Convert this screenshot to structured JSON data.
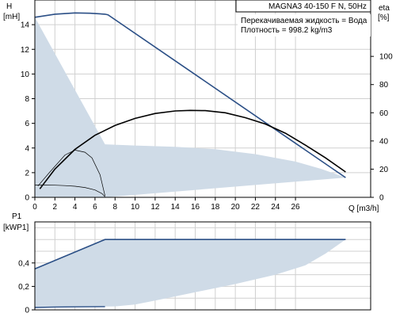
{
  "header": {
    "title": "MAGNA3 40-150 F N, 50Hz",
    "liquid": "Перекачиваемая жидкость = Вода",
    "density": "Плотность = 998.2 kg/m3"
  },
  "colors": {
    "fill": "#cfdbe7",
    "curve": "#2b4f86",
    "grid": "#d0d0d0",
    "black": "#000000"
  },
  "chart_data": [
    {
      "type": "area",
      "ylabel_1": "H",
      "ylabel_2": "[mH]",
      "y2label_1": "eta",
      "y2label_2": "[%]",
      "xlabel": "Q [m3/h]",
      "xlim": [
        0,
        33.5
      ],
      "ylim": [
        0,
        16
      ],
      "y2lim": [
        0,
        140
      ],
      "xticks": [
        "0",
        "2",
        "4",
        "6",
        "8",
        "10",
        "12",
        "14",
        "16",
        "18",
        "20",
        "22",
        "24",
        "26"
      ],
      "yticks": [
        "0",
        "2",
        "4",
        "6",
        "8",
        "10",
        "12",
        "14"
      ],
      "y2ticks": [
        "0",
        "20",
        "40",
        "60",
        "80",
        "100"
      ],
      "grid": true,
      "series": [
        {
          "role": "operating-area",
          "x": [
            0,
            4,
            7,
            31,
            28.6,
            26,
            22,
            18,
            14,
            10,
            7,
            0
          ],
          "y": [
            0,
            0,
            0,
            1.6,
            2.3,
            2.9,
            3.5,
            3.9,
            4.1,
            4.2,
            4.3,
            14.6
          ]
        },
        {
          "role": "max-head",
          "x": [
            0,
            2,
            4,
            5.5,
            7,
            7.3,
            31
          ],
          "y": [
            14.6,
            14.85,
            14.95,
            14.93,
            14.85,
            14.8,
            1.6
          ]
        },
        {
          "role": "max-efficiency",
          "x": [
            0.5,
            2,
            4,
            6,
            8,
            10,
            12,
            14,
            15.5,
            17,
            19,
            21,
            23,
            25,
            27,
            29,
            31
          ],
          "y": [
            6,
            20,
            34,
            44,
            51,
            56,
            59.5,
            61.3,
            61.7,
            61.5,
            60,
            56.5,
            52,
            45.5,
            37,
            28,
            18
          ]
        },
        {
          "role": "min-efficiency",
          "x": [
            0.3,
            1.5,
            3,
            4,
            5,
            5.7,
            6.5,
            7
          ],
          "y": [
            8,
            18,
            30,
            33.5,
            32,
            28,
            16,
            1
          ]
        },
        {
          "role": "min-head",
          "x": [
            0,
            1,
            2,
            3,
            4,
            5,
            6,
            6.7,
            7
          ],
          "y": [
            1.0,
            1.0,
            0.98,
            0.95,
            0.9,
            0.8,
            0.6,
            0.3,
            0.05
          ]
        }
      ]
    },
    {
      "type": "area",
      "ylabel_1": "P1",
      "ylabel_2": "[kWP1]",
      "xlim": [
        0,
        33.5
      ],
      "ylim": [
        0,
        0.75
      ],
      "yticks": [
        "0",
        "0,2",
        "0,4"
      ],
      "grid": true,
      "series": [
        {
          "role": "power-area",
          "x": [
            0,
            7,
            31,
            29,
            27,
            24,
            20,
            16,
            12,
            10,
            8,
            0
          ],
          "y": [
            0.35,
            0.6,
            0.6,
            0.48,
            0.38,
            0.3,
            0.22,
            0.15,
            0.08,
            0.045,
            0.03,
            0.02
          ]
        },
        {
          "role": "max-power",
          "x": [
            0,
            7,
            31
          ],
          "y": [
            0.35,
            0.6,
            0.6
          ]
        },
        {
          "role": "min-power",
          "x": [
            0,
            2,
            4,
            7
          ],
          "y": [
            0.02,
            0.024,
            0.026,
            0.028
          ]
        }
      ]
    }
  ]
}
